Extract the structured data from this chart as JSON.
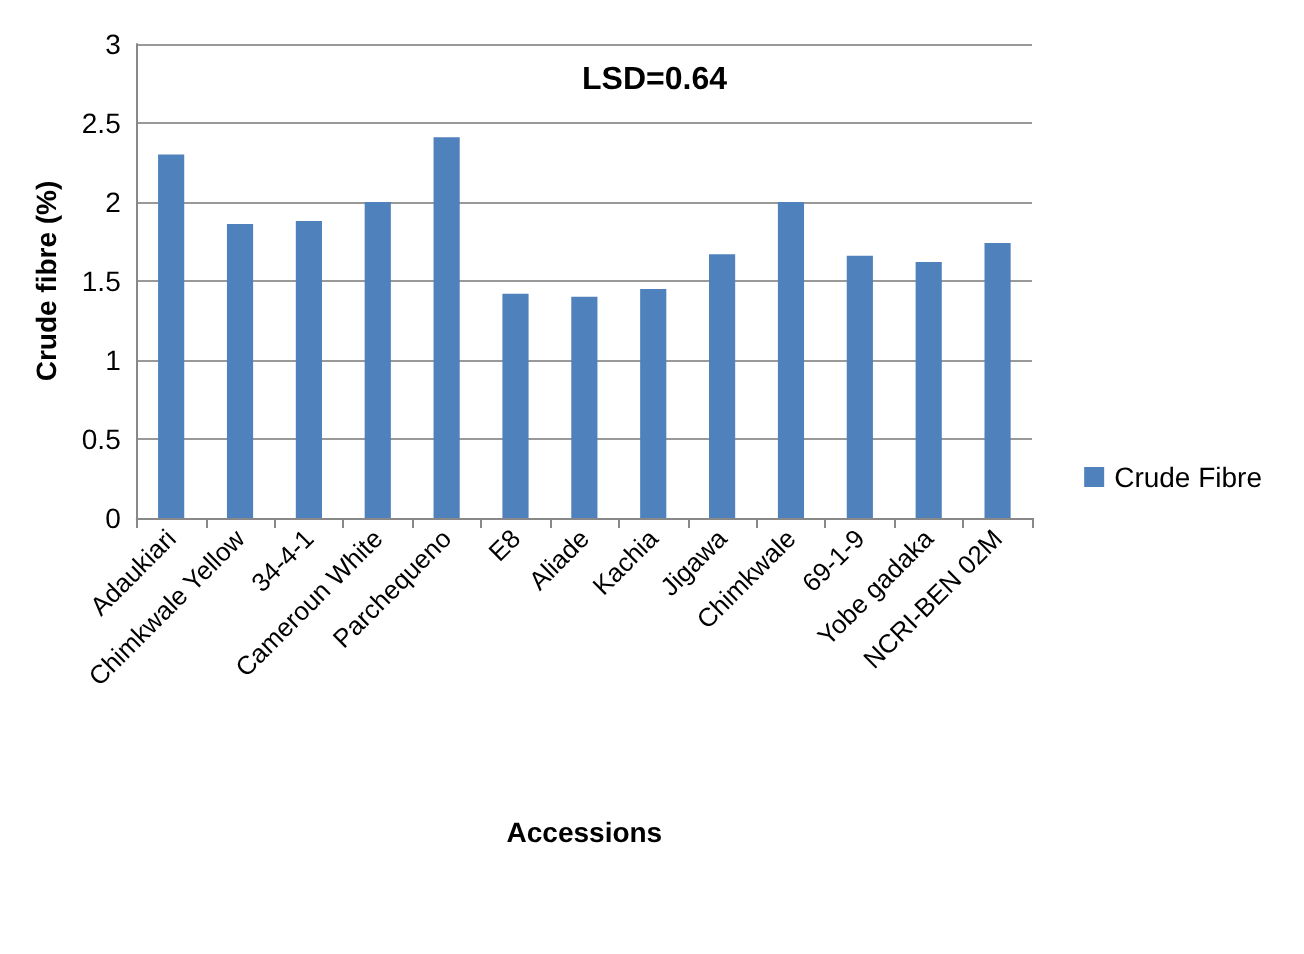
{
  "chart_data": {
    "type": "bar",
    "xlabel": "Accessions",
    "ylabel": "Crude fibre (%)",
    "annotations": [
      "LSD=0.64"
    ],
    "categories": [
      "Adaukiari",
      "Chimkwale Yellow",
      "34-4-1",
      "Cameroun White",
      "Parchequeno",
      "E8",
      "Aliade",
      "Kachia",
      "Jigawa",
      "Chimkwale",
      "69-1-9",
      "Yobe gadaka",
      "NCRI-BEN 02M"
    ],
    "series": [
      {
        "name": "Crude Fibre",
        "color": "#4f81bd",
        "values": [
          2.3,
          1.86,
          1.88,
          2.0,
          2.41,
          1.42,
          1.4,
          1.45,
          1.67,
          2.0,
          1.66,
          1.62,
          1.74
        ]
      }
    ],
    "ylim": [
      0,
      3
    ],
    "yticks": [
      0,
      0.5,
      1,
      1.5,
      2,
      2.5,
      3
    ],
    "grid": "y",
    "legend": "right"
  }
}
